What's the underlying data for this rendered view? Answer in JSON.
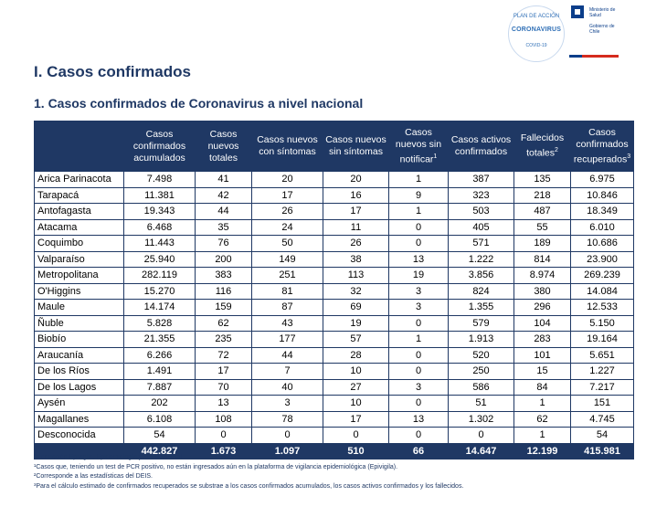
{
  "branding": {
    "plan_logo": {
      "top": "PLAN DE ACCIÓN",
      "main": "CORONAVIRUS",
      "bottom": "COVID-19"
    },
    "gov_logo": {
      "ministry": "Ministerio de Salud",
      "government": "Gobierno de Chile"
    }
  },
  "section_title": "I. Casos confirmados",
  "subtitle": "1. Casos confirmados de Coronavirus a nivel nacional",
  "table": {
    "headers": [
      "",
      "Casos confirmados acumulados",
      "Casos nuevos totales",
      "Casos nuevos con síntomas",
      "Casos nuevos sin síntomas",
      "Casos nuevos sin notificar",
      "Casos activos confirmados",
      "Fallecidos totales",
      "Casos confirmados recuperados"
    ],
    "header_sups": [
      "",
      "",
      "",
      "",
      "",
      "1",
      "",
      "2",
      "3"
    ],
    "rows": [
      [
        "Arica Parinacota",
        "7.498",
        "41",
        "20",
        "20",
        "1",
        "387",
        "135",
        "6.975"
      ],
      [
        "Tarapacá",
        "11.381",
        "42",
        "17",
        "16",
        "9",
        "323",
        "218",
        "10.846"
      ],
      [
        "Antofagasta",
        "19.343",
        "44",
        "26",
        "17",
        "1",
        "503",
        "487",
        "18.349"
      ],
      [
        "Atacama",
        "6.468",
        "35",
        "24",
        "11",
        "0",
        "405",
        "55",
        "6.010"
      ],
      [
        "Coquimbo",
        "11.443",
        "76",
        "50",
        "26",
        "0",
        "571",
        "189",
        "10.686"
      ],
      [
        "Valparaíso",
        "25.940",
        "200",
        "149",
        "38",
        "13",
        "1.222",
        "814",
        "23.900"
      ],
      [
        "Metropolitana",
        "282.119",
        "383",
        "251",
        "113",
        "19",
        "3.856",
        "8.974",
        "269.239"
      ],
      [
        "O'Higgins",
        "15.270",
        "116",
        "81",
        "32",
        "3",
        "824",
        "380",
        "14.084"
      ],
      [
        "Maule",
        "14.174",
        "159",
        "87",
        "69",
        "3",
        "1.355",
        "296",
        "12.533"
      ],
      [
        "Ñuble",
        "5.828",
        "62",
        "43",
        "19",
        "0",
        "579",
        "104",
        "5.150"
      ],
      [
        "Biobío",
        "21.355",
        "235",
        "177",
        "57",
        "1",
        "1.913",
        "283",
        "19.164"
      ],
      [
        "Araucanía",
        "6.266",
        "72",
        "44",
        "28",
        "0",
        "520",
        "101",
        "5.651"
      ],
      [
        "De los Ríos",
        "1.491",
        "17",
        "7",
        "10",
        "0",
        "250",
        "15",
        "1.227"
      ],
      [
        "De los Lagos",
        "7.887",
        "70",
        "40",
        "27",
        "3",
        "586",
        "84",
        "7.217"
      ],
      [
        "Aysén",
        "202",
        "13",
        "3",
        "10",
        "0",
        "51",
        "1",
        "151"
      ],
      [
        "Magallanes",
        "6.108",
        "108",
        "78",
        "17",
        "13",
        "1.302",
        "62",
        "4.745"
      ],
      [
        "Desconocida",
        "54",
        "0",
        "0",
        "0",
        "0",
        "0",
        "1",
        "54"
      ]
    ],
    "total": [
      "",
      "442.827",
      "1.673",
      "1.097",
      "510",
      "66",
      "14.647",
      "12.199",
      "415.981"
    ]
  },
  "notes": [
    "Información Epivigila, Epidemiología y DEIS MINSAL",
    "¹Casos que, teniendo un test de PCR positivo, no están ingresados aún en la plataforma de vigilancia epidemiológica (Epivigila).",
    "²Corresponde a las estadísticas del DEIS.",
    "³Para el cálculo estimado de confirmados recuperados se substrae a los casos confirmados acumulados, los casos activos confirmados y los fallecidos."
  ]
}
